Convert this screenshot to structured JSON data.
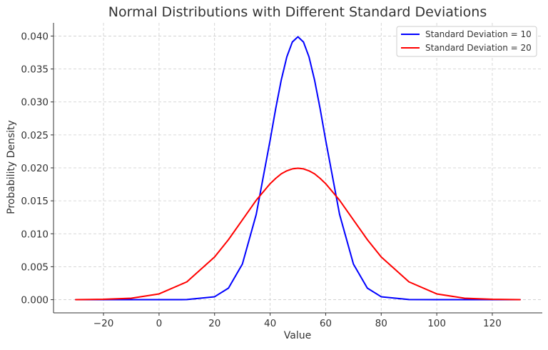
{
  "chart_data": {
    "type": "line",
    "title": "Normal Distributions with Different Standard Deviations",
    "xlabel": "Value",
    "ylabel": "Probability Density",
    "xlim": [
      -38,
      138
    ],
    "ylim": [
      -0.002,
      0.042
    ],
    "x_ticks": [
      -20,
      0,
      20,
      40,
      60,
      80,
      100,
      120
    ],
    "x_tick_labels": [
      "−20",
      "0",
      "20",
      "40",
      "60",
      "80",
      "100",
      "120"
    ],
    "y_ticks": [
      0,
      0.005,
      0.01,
      0.015,
      0.02,
      0.025,
      0.03,
      0.035,
      0.04
    ],
    "y_tick_labels": [
      "0.000",
      "0.005",
      "0.010",
      "0.015",
      "0.020",
      "0.025",
      "0.030",
      "0.035",
      "0.040"
    ],
    "grid": true,
    "legend_position": "top-right",
    "x": [
      -30,
      -20,
      -10,
      0,
      10,
      20,
      25,
      30,
      35,
      40,
      42,
      44,
      46,
      48,
      50,
      52,
      54,
      56,
      58,
      60,
      65,
      70,
      75,
      80,
      90,
      100,
      110,
      120,
      130
    ],
    "series": [
      {
        "name": "Standard Deviation = 10",
        "color": "#0000ff",
        "values": [
          0.0,
          0.0,
          0.0,
          0.0,
          1.3e-05,
          0.000443,
          0.001753,
          0.0054,
          0.01295,
          0.0242,
          0.02897,
          0.03332,
          0.03683,
          0.0391,
          0.03989,
          0.0391,
          0.03683,
          0.03332,
          0.02897,
          0.0242,
          0.01295,
          0.0054,
          0.001753,
          0.000443,
          1.3e-05,
          0.0,
          0.0,
          0.0,
          0.0
        ]
      },
      {
        "name": "Standard Deviation = 20",
        "color": "#ff0000",
        "values": [
          7e-06,
          6e-05,
          0.000219,
          0.000876,
          0.0027,
          0.00648,
          0.00911,
          0.0121,
          0.01509,
          0.0176,
          0.0184,
          0.01909,
          0.01955,
          0.01985,
          0.01995,
          0.01985,
          0.01955,
          0.01909,
          0.0184,
          0.0176,
          0.01509,
          0.0121,
          0.00911,
          0.00648,
          0.0027,
          0.000876,
          0.000219,
          6e-05,
          7e-06
        ]
      }
    ]
  }
}
